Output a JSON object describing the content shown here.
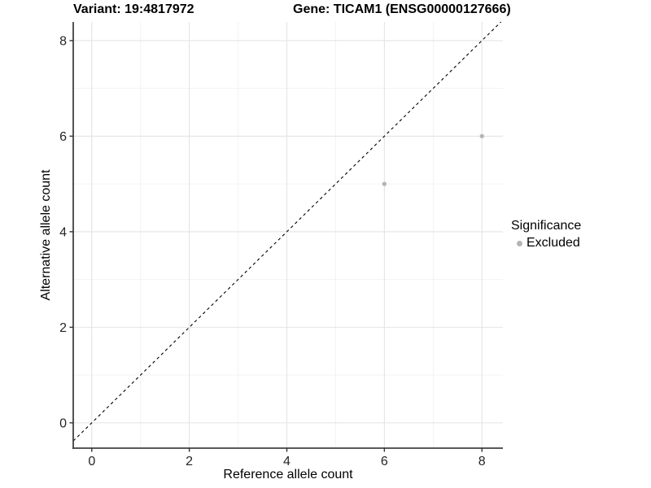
{
  "titles": {
    "variant": "Variant: 19:4817972",
    "gene": "Gene: TICAM1 (ENSG00000127666)"
  },
  "legend": {
    "title": "Significance",
    "items": [
      {
        "label": "Excluded",
        "color": "#b5b5b5"
      }
    ]
  },
  "chart_data": {
    "type": "scatter",
    "xlabel": "Reference allele count",
    "ylabel": "Alternative allele count",
    "xlim": [
      -0.38,
      8.43
    ],
    "ylim": [
      -0.53,
      8.39
    ],
    "xticks": [
      0,
      2,
      4,
      6,
      8
    ],
    "yticks": [
      0,
      2,
      4,
      6,
      8
    ],
    "xticks_minor": [
      1,
      3,
      5,
      7
    ],
    "yticks_minor": [
      1,
      3,
      5,
      7
    ],
    "grid": "major+minor",
    "legend_position": "right",
    "series": [
      {
        "name": "Excluded",
        "color": "#b5b5b5",
        "points": [
          {
            "x": 6,
            "y": 5
          },
          {
            "x": 8,
            "y": 6
          }
        ]
      }
    ],
    "identity_line": {
      "slope": 1,
      "intercept": 0,
      "style": "dashed",
      "color": "#000000"
    }
  },
  "colors": {
    "background": "#ffffff",
    "grid_major": "#e4e4e4",
    "grid_minor": "#f0f0f0",
    "axis_line": "#404040",
    "tick_mark": "#333333",
    "tick_label": "#262626",
    "point": "#b5b5b5"
  }
}
